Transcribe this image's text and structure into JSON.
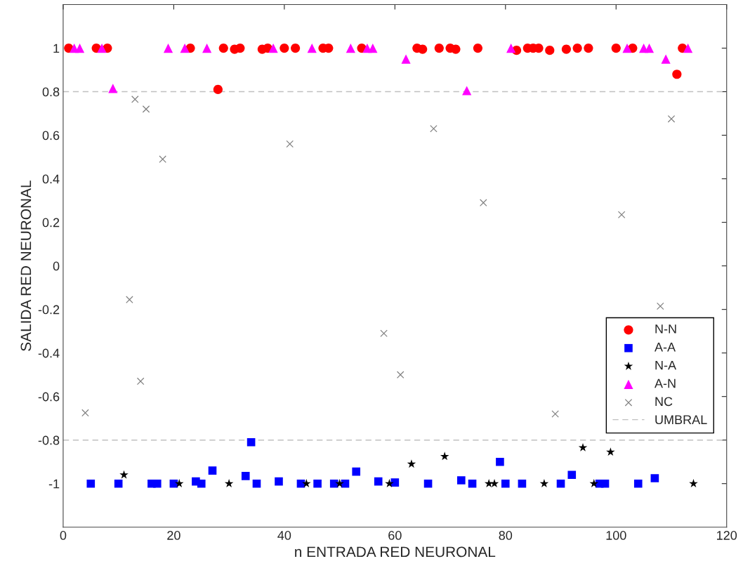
{
  "chart_data": {
    "type": "scatter",
    "xlabel": "n ENTRADA RED NEURONAL",
    "ylabel": "SALIDA RED NEURONAL",
    "xlim": [
      0,
      120
    ],
    "ylim": [
      -1.2,
      1.2
    ],
    "xticks": [
      0,
      20,
      40,
      60,
      80,
      100,
      120
    ],
    "yticks": [
      -1,
      -0.8,
      -0.6,
      -0.4,
      -0.2,
      0,
      0.2,
      0.4,
      0.6,
      0.8,
      1
    ],
    "grid": false,
    "legend": "bottom right",
    "series": [
      {
        "name": "N-N",
        "color": "#ff0000",
        "marker": "circle",
        "x": [
          1,
          6,
          8,
          23,
          28,
          29,
          31,
          32,
          36,
          37,
          40,
          42,
          47,
          48,
          54,
          64,
          65,
          68,
          70,
          71,
          75,
          82,
          84,
          85,
          86,
          88,
          91,
          93,
          95,
          100,
          103,
          111,
          112
        ],
        "values": [
          1,
          1,
          1,
          1,
          0.81,
          1,
          0.995,
          1,
          0.995,
          1,
          1,
          1,
          1,
          1,
          1,
          1,
          0.995,
          1,
          1,
          0.995,
          1,
          0.99,
          1,
          1,
          1,
          0.99,
          0.995,
          1,
          1,
          1,
          1,
          0.88,
          1
        ]
      },
      {
        "name": "A-A",
        "color": "#0000ff",
        "marker": "square",
        "x": [
          5,
          10,
          16,
          17,
          20,
          24,
          25,
          27,
          33,
          34,
          35,
          39,
          43,
          46,
          49,
          51,
          53,
          57,
          60,
          66,
          72,
          74,
          79,
          80,
          83,
          90,
          92,
          97,
          98,
          104,
          107
        ],
        "values": [
          -1,
          -1,
          -1,
          -1,
          -1,
          -0.99,
          -1,
          -0.94,
          -0.965,
          -0.81,
          -1,
          -0.99,
          -1,
          -1,
          -1,
          -1,
          -0.945,
          -0.99,
          -0.995,
          -1,
          -0.985,
          -1,
          -0.9,
          -1,
          -1,
          -1,
          -0.96,
          -1,
          -1,
          -1,
          -0.975
        ]
      },
      {
        "name": "N-A",
        "color": "#000000",
        "marker": "star",
        "x": [
          11,
          21,
          30,
          44,
          50,
          59,
          63,
          69,
          77,
          78,
          87,
          94,
          96,
          99,
          114
        ],
        "values": [
          -0.96,
          -1,
          -1,
          -1,
          -1,
          -1,
          -0.91,
          -0.875,
          -1,
          -1,
          -1,
          -0.835,
          -1,
          -0.855,
          -1
        ]
      },
      {
        "name": "A-N",
        "color": "#ff00ff",
        "marker": "triangle",
        "x": [
          2,
          3,
          7,
          9,
          19,
          22,
          26,
          38,
          45,
          52,
          55,
          56,
          62,
          73,
          81,
          102,
          105,
          106,
          109,
          113
        ],
        "values": [
          1,
          1,
          1,
          0.815,
          1,
          1,
          1,
          1,
          1,
          1,
          1,
          1,
          0.95,
          0.805,
          1,
          1,
          1,
          1,
          0.95,
          1
        ]
      },
      {
        "name": "NC",
        "color": "#808080",
        "marker": "cross",
        "x": [
          4,
          12,
          13,
          14,
          15,
          18,
          41,
          58,
          61,
          67,
          76,
          89,
          101,
          108,
          110
        ],
        "values": [
          -0.675,
          -0.155,
          0.765,
          -0.53,
          0.72,
          0.49,
          0.56,
          -0.31,
          -0.5,
          0.63,
          0.29,
          -0.68,
          0.235,
          -0.185,
          0.675
        ]
      }
    ],
    "ref_lines": [
      {
        "axis": "y",
        "value": 0.8,
        "label": "UMBRAL",
        "color": "#c0c0c0",
        "line_style": "dashed"
      },
      {
        "axis": "y",
        "value": -0.8,
        "label": null,
        "color": "#c0c0c0",
        "line_style": "dashed"
      }
    ]
  }
}
